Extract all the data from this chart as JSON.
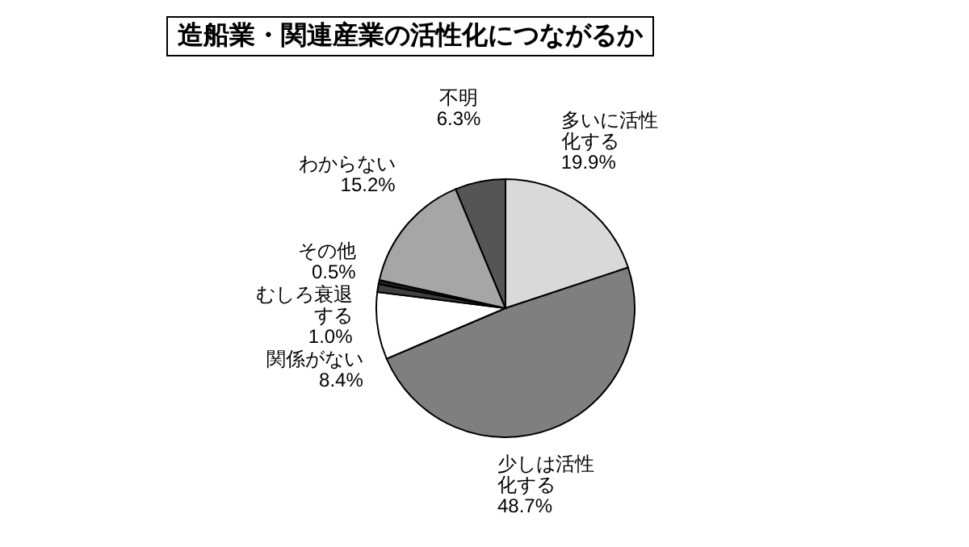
{
  "chart_data": {
    "type": "pie",
    "title": "造船業・関連産業の活性化につながるか",
    "categories": [
      "多いに活性化する",
      "少しは活性化する",
      "関係がない",
      "むしろ衰退する",
      "その他",
      "わからない",
      "不明"
    ],
    "values": [
      19.9,
      48.7,
      8.4,
      1.0,
      0.5,
      15.2,
      6.3
    ],
    "value_labels": [
      "19.9%",
      "48.7%",
      "8.4%",
      "1.0%",
      "0.5%",
      "15.2%",
      "6.3%"
    ],
    "colors": [
      "#d9d9d9",
      "#7f7f7f",
      "#ffffff",
      "#404040",
      "#202020",
      "#a6a6a6",
      "#555555"
    ]
  }
}
